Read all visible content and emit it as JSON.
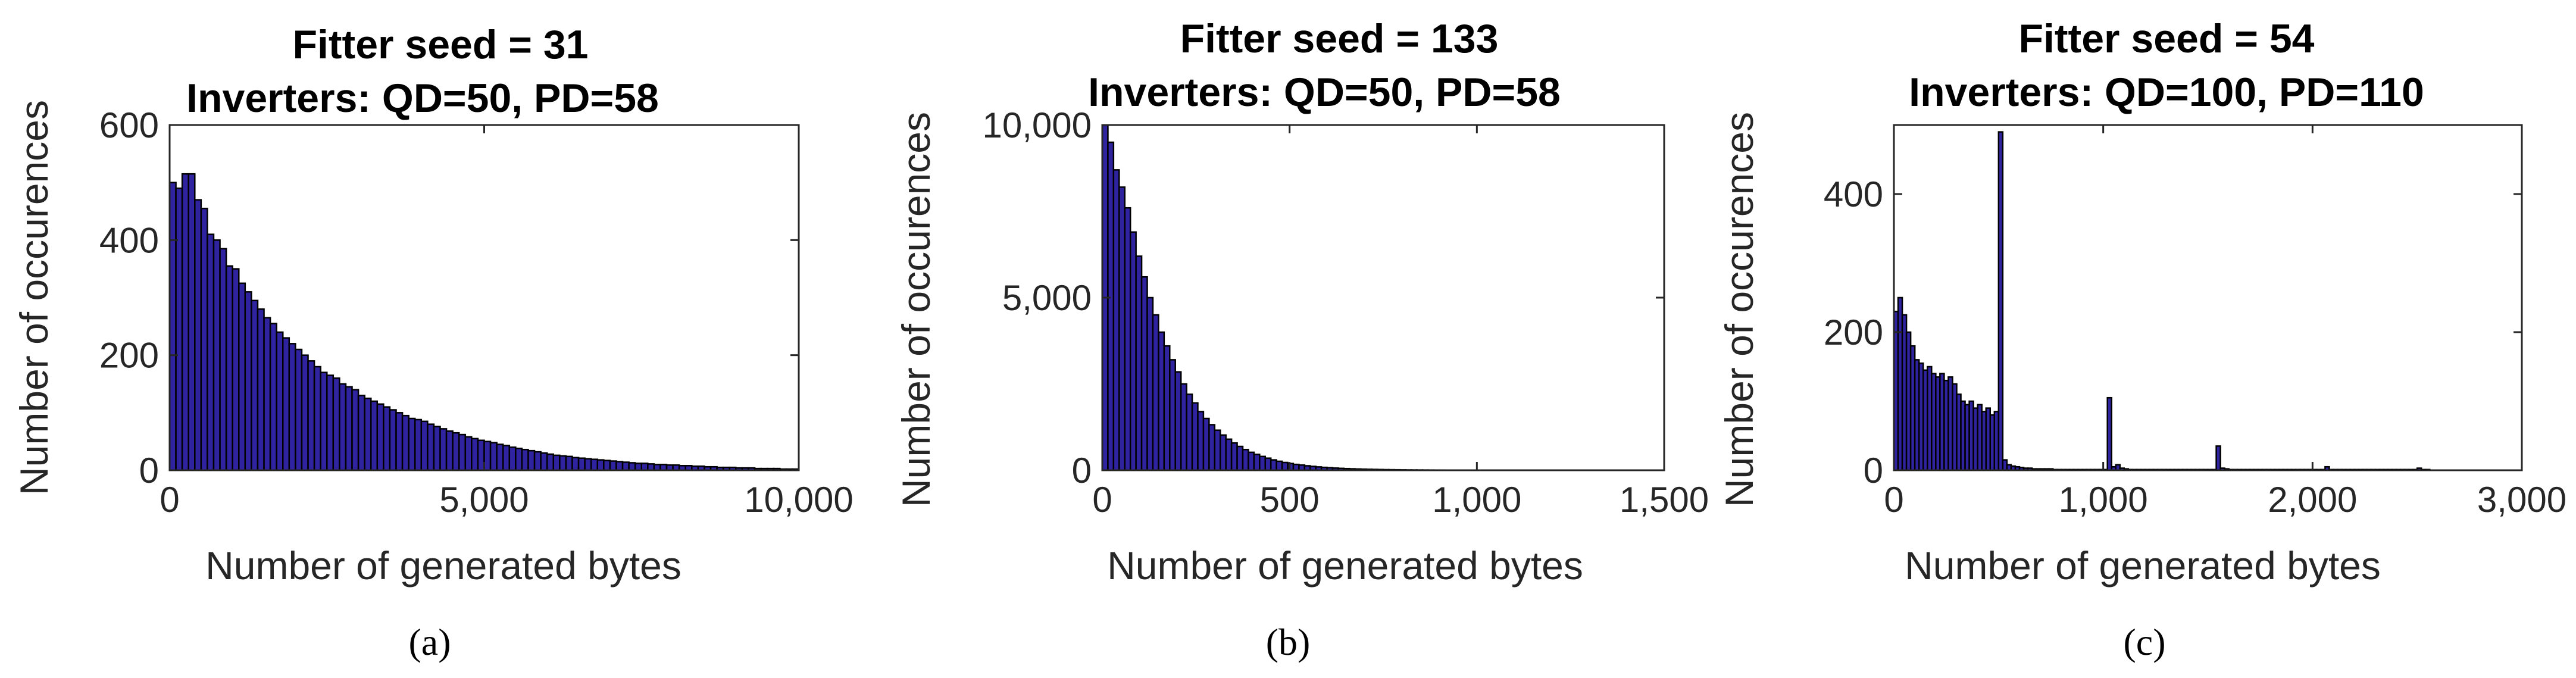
{
  "chart_data": [
    {
      "type": "bar",
      "title_line1": "Fitter seed = 31",
      "title_line2": "Inverters: QD=50, PD=58",
      "xlabel": "Number of generated bytes",
      "ylabel": "Number of occurences",
      "xlim": [
        0,
        10000
      ],
      "ylim": [
        0,
        600
      ],
      "xticks": [
        0,
        5000,
        10000
      ],
      "xtick_labels": [
        "0",
        "5,000",
        "10,000"
      ],
      "yticks": [
        0,
        200,
        400,
        600
      ],
      "ytick_labels": [
        "0",
        "200",
        "400",
        "600"
      ],
      "bin_width": 100,
      "values": [
        500,
        490,
        515,
        515,
        470,
        455,
        410,
        400,
        385,
        355,
        350,
        325,
        310,
        295,
        280,
        265,
        255,
        240,
        230,
        220,
        210,
        200,
        190,
        180,
        170,
        165,
        160,
        150,
        145,
        140,
        130,
        125,
        120,
        115,
        110,
        105,
        100,
        95,
        90,
        88,
        85,
        80,
        76,
        72,
        68,
        65,
        62,
        58,
        55,
        52,
        50,
        48,
        45,
        43,
        40,
        38,
        36,
        34,
        32,
        30,
        28,
        26,
        25,
        24,
        22,
        21,
        20,
        19,
        18,
        17,
        16,
        15,
        14,
        13,
        12,
        12,
        11,
        10,
        10,
        9,
        9,
        8,
        8,
        7,
        7,
        6,
        6,
        5,
        5,
        5,
        4,
        4,
        4,
        3,
        3,
        3,
        3,
        2,
        2,
        2
      ],
      "caption": "(a)"
    },
    {
      "type": "bar",
      "title_line1": "Fitter seed = 133",
      "title_line2": "Inverters: QD=50, PD=58",
      "xlabel": "Number of generated bytes",
      "ylabel": "Number of occurences",
      "xlim": [
        0,
        1500
      ],
      "ylim": [
        0,
        10000
      ],
      "xticks": [
        0,
        500,
        1000,
        1500
      ],
      "xtick_labels": [
        "0",
        "500",
        "1,000",
        "1,500"
      ],
      "yticks": [
        0,
        5000,
        10000
      ],
      "ytick_labels": [
        "0",
        "5,000",
        "10,000"
      ],
      "bin_width": 15,
      "values": [
        10000,
        9500,
        8700,
        8200,
        7600,
        6900,
        6200,
        5600,
        5000,
        4500,
        4000,
        3600,
        3200,
        2850,
        2500,
        2200,
        1950,
        1700,
        1500,
        1320,
        1160,
        1020,
        900,
        790,
        690,
        600,
        520,
        460,
        400,
        350,
        300,
        260,
        225,
        195,
        170,
        150,
        130,
        112,
        97,
        84,
        73,
        63,
        55,
        48,
        42,
        36,
        31,
        27,
        24,
        21,
        18,
        16,
        14,
        12,
        10,
        9,
        8,
        7,
        6,
        5,
        5,
        4,
        4,
        3,
        3,
        3,
        2,
        2,
        2,
        2,
        1,
        1,
        1,
        1,
        1,
        1,
        1,
        1,
        1,
        1
      ],
      "caption": "(b)"
    },
    {
      "type": "bar",
      "title_line1": "Fitter seed = 54",
      "title_line2": "Inverters: QD=100, PD=110",
      "xlabel": "Number of generated bytes",
      "ylabel": "Number of occurences",
      "xlim": [
        0,
        3000
      ],
      "ylim": [
        0,
        500
      ],
      "xticks": [
        0,
        1000,
        2000,
        3000
      ],
      "xtick_labels": [
        "0",
        "1,000",
        "2,000",
        "3,000"
      ],
      "yticks": [
        0,
        200,
        400
      ],
      "ytick_labels": [
        "0",
        "200",
        "400"
      ],
      "bin_width": 20,
      "values": [
        230,
        250,
        225,
        200,
        180,
        160,
        155,
        145,
        150,
        140,
        135,
        140,
        130,
        135,
        125,
        110,
        100,
        95,
        100,
        90,
        95,
        85,
        90,
        80,
        85,
        490,
        15,
        8,
        6,
        5,
        4,
        3,
        3,
        2,
        2,
        2,
        2,
        2,
        1,
        1,
        1,
        1,
        1,
        1,
        1,
        1,
        1,
        1,
        1,
        1,
        1,
        105,
        5,
        8,
        3,
        2,
        1,
        1,
        1,
        1,
        1,
        1,
        1,
        1,
        1,
        1,
        1,
        1,
        1,
        1,
        1,
        1,
        1,
        1,
        1,
        1,
        1,
        35,
        3,
        2,
        1,
        1,
        1,
        1,
        1,
        1,
        1,
        1,
        1,
        1,
        1,
        1,
        1,
        1,
        1,
        1,
        1,
        1,
        1,
        1,
        1,
        1,
        1,
        5,
        1,
        1,
        1,
        1,
        1,
        1,
        1,
        1,
        1,
        1,
        1,
        1,
        1,
        1,
        1,
        1,
        1,
        1,
        1,
        1,
        1,
        3,
        1,
        1
      ],
      "caption": "(c)"
    }
  ]
}
